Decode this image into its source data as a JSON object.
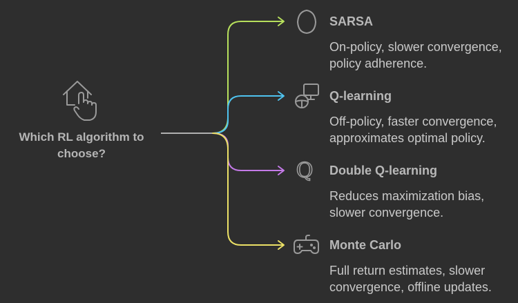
{
  "question": "Which RL algorithm to choose?",
  "colors": {
    "background": "#2e2e2e",
    "trunk": "#b0b0b0",
    "branches": [
      "#b7e05c",
      "#4fc3ef",
      "#c47ae8",
      "#ece166"
    ]
  },
  "options": [
    {
      "title": "SARSA",
      "description": "On-policy, slower convergence, policy adherence.",
      "icon": "egg-outline-icon"
    },
    {
      "title": "Q-learning",
      "description": "Off-policy, faster convergence, approximates optimal policy.",
      "icon": "monitor-steering-wheel-icon"
    },
    {
      "title": "Double Q-learning",
      "description": "Reduces maximization bias, slower convergence.",
      "icon": "q-letter-icon"
    },
    {
      "title": "Monte Carlo",
      "description": "Full return estimates, slower convergence, offline updates.",
      "icon": "game-controller-icon"
    }
  ]
}
